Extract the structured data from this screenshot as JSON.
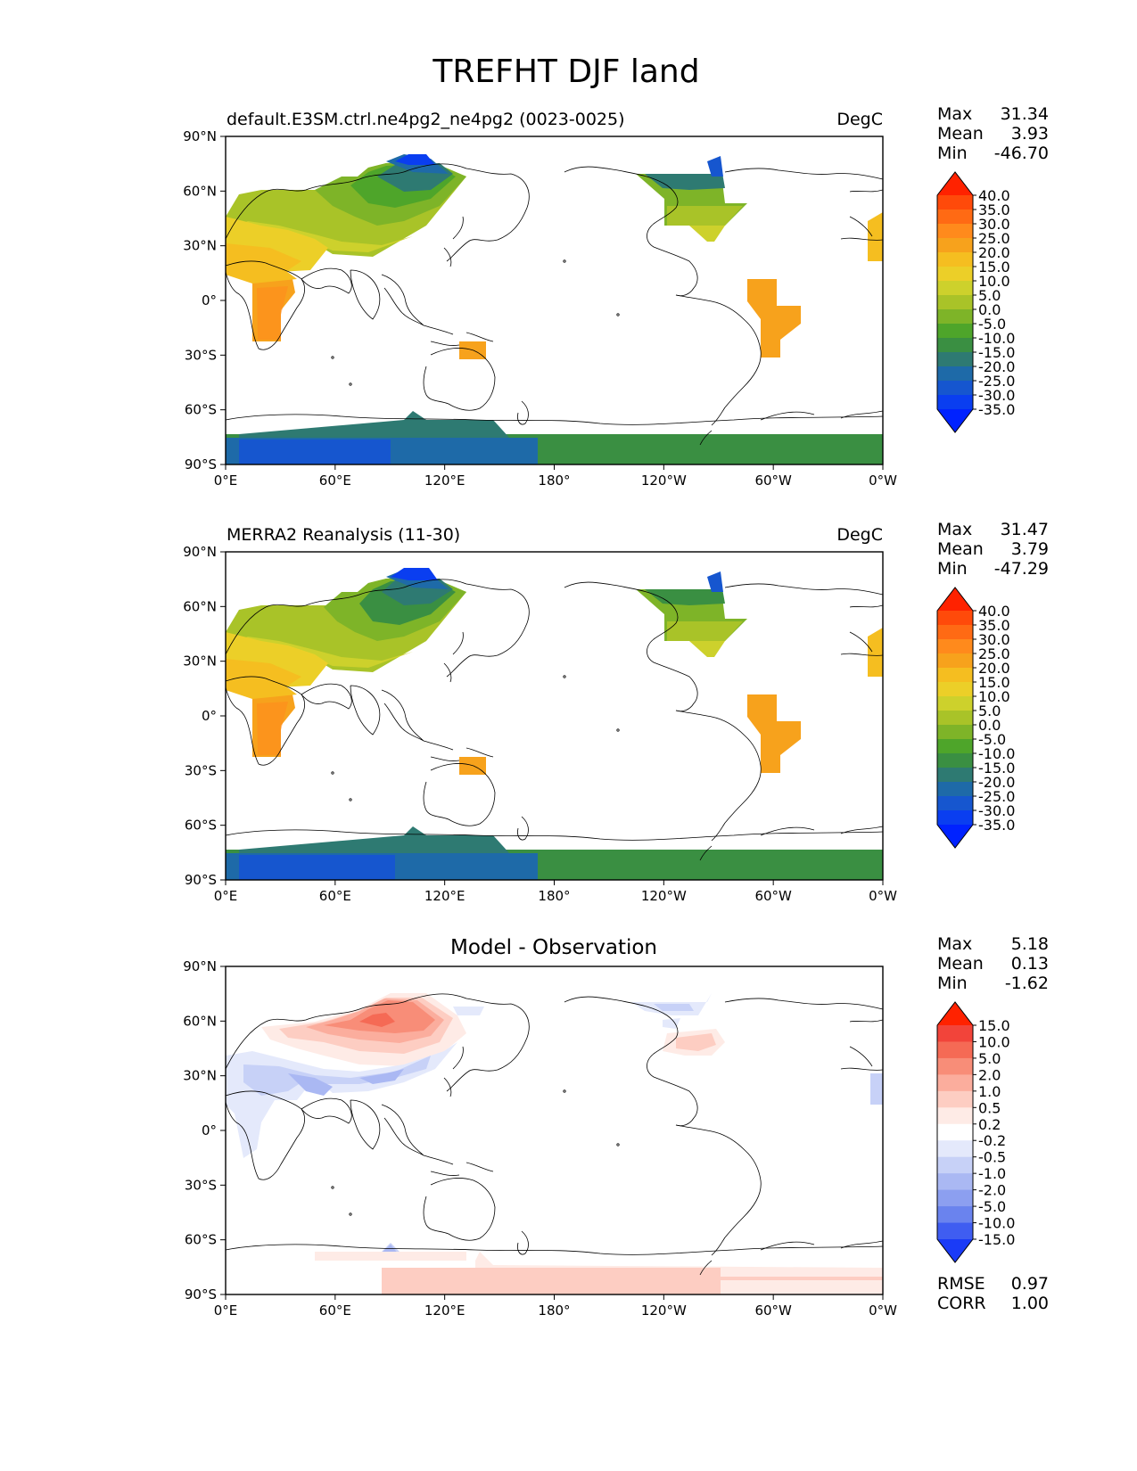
{
  "figure": {
    "title": "TREFHT DJF land"
  },
  "axes": {
    "x_ticks": [
      "0°E",
      "60°E",
      "120°E",
      "180°",
      "120°W",
      "60°W",
      "0°W"
    ],
    "y_ticks": [
      "90°N",
      "60°N",
      "30°N",
      "0°",
      "30°S",
      "60°S",
      "90°S"
    ]
  },
  "panels": [
    {
      "id": "test",
      "title_left": "default.E3SM.ctrl.ne4pg2_ne4pg2 (0023-0025)",
      "title_center": "",
      "title_right": "DegC",
      "stats": [
        {
          "label": "Max",
          "value": "31.34"
        },
        {
          "label": "Mean",
          "value": "3.93"
        },
        {
          "label": "Min",
          "value": "-46.70"
        }
      ],
      "colorbar": {
        "labels": [
          "40.0",
          "35.0",
          "30.0",
          "25.0",
          "20.0",
          "15.0",
          "10.0",
          "5.0",
          "0.0",
          "-5.0",
          "-10.0",
          "-15.0",
          "-20.0",
          "-25.0",
          "-30.0",
          "-35.0"
        ],
        "colors": [
          "#ff2200",
          "#ff4a0a",
          "#ff6a14",
          "#ff8a1c",
          "#f7a21c",
          "#f5be20",
          "#eccf28",
          "#cdd12c",
          "#a9c328",
          "#7eb428",
          "#4ea52a",
          "#3a8f42",
          "#2e7a72",
          "#1e6aa8",
          "#1656cf",
          "#0a3ef0",
          "#0022ff"
        ]
      },
      "extra_stats": []
    },
    {
      "id": "reference",
      "title_left": "MERRA2 Reanalysis (11-30)",
      "title_center": "",
      "title_right": "DegC",
      "stats": [
        {
          "label": "Max",
          "value": "31.47"
        },
        {
          "label": "Mean",
          "value": "3.79"
        },
        {
          "label": "Min",
          "value": "-47.29"
        }
      ],
      "colorbar": {
        "labels": [
          "40.0",
          "35.0",
          "30.0",
          "25.0",
          "20.0",
          "15.0",
          "10.0",
          "5.0",
          "0.0",
          "-5.0",
          "-10.0",
          "-15.0",
          "-20.0",
          "-25.0",
          "-30.0",
          "-35.0"
        ],
        "colors": [
          "#ff2200",
          "#ff4a0a",
          "#ff6a14",
          "#ff8a1c",
          "#f7a21c",
          "#f5be20",
          "#eccf28",
          "#cdd12c",
          "#a9c328",
          "#7eb428",
          "#4ea52a",
          "#3a8f42",
          "#2e7a72",
          "#1e6aa8",
          "#1656cf",
          "#0a3ef0",
          "#0022ff"
        ]
      },
      "extra_stats": []
    },
    {
      "id": "difference",
      "title_left": "",
      "title_center": "Model - Observation",
      "title_right": "",
      "stats": [
        {
          "label": "Max",
          "value": "5.18"
        },
        {
          "label": "Mean",
          "value": "0.13"
        },
        {
          "label": "Min",
          "value": "-1.62"
        }
      ],
      "colorbar": {
        "labels": [
          "15.0",
          "10.0",
          "5.0",
          "2.0",
          "1.0",
          "0.5",
          "0.2",
          "-0.2",
          "-0.5",
          "-1.0",
          "-2.0",
          "-5.0",
          "-10.0",
          "-15.0"
        ],
        "colors": [
          "#ff2200",
          "#f2443a",
          "#f56a55",
          "#f88d78",
          "#fbad9d",
          "#fdcdc2",
          "#feebe6",
          "#ffffff",
          "#e4e9fb",
          "#c7d1f7",
          "#aab8f3",
          "#8c9ff0",
          "#6a83ee",
          "#3f5df1",
          "#1a3bf7"
        ]
      },
      "extra_stats": [
        {
          "label": "RMSE",
          "value": "0.97"
        },
        {
          "label": "CORR",
          "value": "1.00"
        }
      ]
    }
  ]
}
